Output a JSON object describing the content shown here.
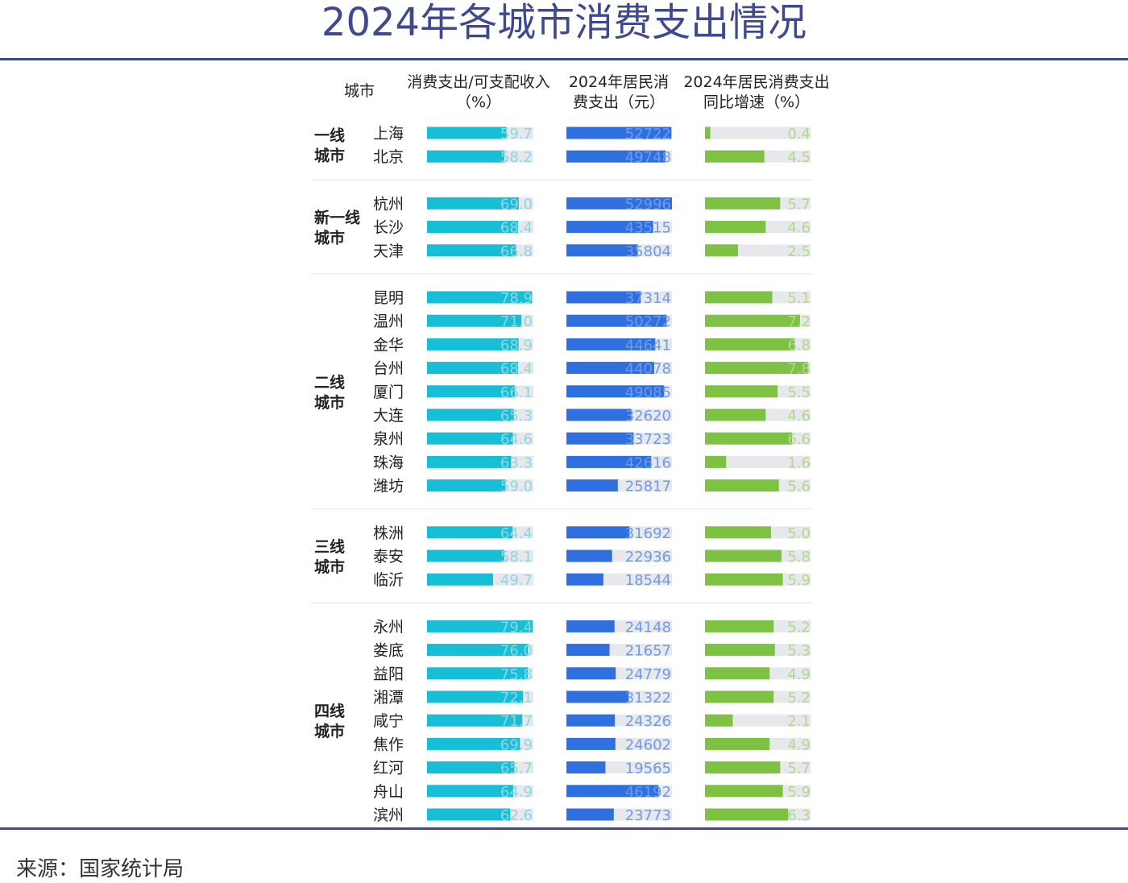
{
  "title": "2024年各城市消费支出情况",
  "source": "来源：国家统计局",
  "colors": {
    "ratio": "#16BFD6",
    "spending": "#2F6FE0",
    "growth": "#7DC242",
    "track": "#E6E8EB",
    "value_ratio": "#8FD5E3",
    "value_spending": "#6F9BE6",
    "value_growth": "#B2D88E",
    "title": "#3F4A8E",
    "rule": "#3A4C8C"
  },
  "headers": {
    "city": "城市",
    "ratio": "消费支出/可支配收入（%）",
    "spending": "2024年居民消费支出（元）",
    "growth": "2024年居民消费支出同比增速（%）"
  },
  "chart_data": {
    "type": "bar",
    "series": [
      {
        "key": "ratio",
        "name": "消费支出/可支配收入（%）",
        "max": 80
      },
      {
        "key": "spending",
        "name": "2024年居民消费支出（元）",
        "max": 53000
      },
      {
        "key": "growth",
        "name": "2024年居民消费支出同比增速（%）",
        "max": 8
      }
    ],
    "groups": [
      {
        "tier": "一线城市",
        "cities": [
          {
            "city": "上海",
            "ratio": 59.7,
            "spending": 52722,
            "growth": 0.4
          },
          {
            "city": "北京",
            "ratio": 58.2,
            "spending": 49748,
            "growth": 4.5
          }
        ]
      },
      {
        "tier": "新一线城市",
        "cities": [
          {
            "city": "杭州",
            "ratio": 69.0,
            "spending": 52996,
            "growth": 5.7
          },
          {
            "city": "长沙",
            "ratio": 68.4,
            "spending": 43515,
            "growth": 4.6
          },
          {
            "city": "天津",
            "ratio": 66.8,
            "spending": 35804,
            "growth": 2.5
          }
        ]
      },
      {
        "tier": "二线城市",
        "cities": [
          {
            "city": "昆明",
            "ratio": 78.9,
            "spending": 37314,
            "growth": 5.1
          },
          {
            "city": "温州",
            "ratio": 71.0,
            "spending": 50272,
            "growth": 7.2
          },
          {
            "city": "金华",
            "ratio": 68.9,
            "spending": 44641,
            "growth": 6.8
          },
          {
            "city": "台州",
            "ratio": 68.4,
            "spending": 44078,
            "growth": 7.8
          },
          {
            "city": "厦门",
            "ratio": 66.1,
            "spending": 49085,
            "growth": 5.5
          },
          {
            "city": "大连",
            "ratio": 65.3,
            "spending": 32620,
            "growth": 4.6
          },
          {
            "city": "泉州",
            "ratio": 64.6,
            "spending": 33723,
            "growth": 6.6
          },
          {
            "city": "珠海",
            "ratio": 63.3,
            "spending": 42616,
            "growth": 1.6
          },
          {
            "city": "潍坊",
            "ratio": 59.0,
            "spending": 25817,
            "growth": 5.6
          }
        ]
      },
      {
        "tier": "三线城市",
        "cities": [
          {
            "city": "株洲",
            "ratio": 64.4,
            "spending": 31692,
            "growth": 5.0
          },
          {
            "city": "泰安",
            "ratio": 58.1,
            "spending": 22936,
            "growth": 5.8
          },
          {
            "city": "临沂",
            "ratio": 49.7,
            "spending": 18544,
            "growth": 5.9
          }
        ]
      },
      {
        "tier": "四线城市",
        "cities": [
          {
            "city": "永州",
            "ratio": 79.4,
            "spending": 24148,
            "growth": 5.2
          },
          {
            "city": "娄底",
            "ratio": 76.0,
            "spending": 21657,
            "growth": 5.3
          },
          {
            "city": "益阳",
            "ratio": 75.8,
            "spending": 24779,
            "growth": 4.9
          },
          {
            "city": "湘潭",
            "ratio": 72.1,
            "spending": 31322,
            "growth": 5.2
          },
          {
            "city": "咸宁",
            "ratio": 71.7,
            "spending": 24326,
            "growth": 2.1
          },
          {
            "city": "焦作",
            "ratio": 69.9,
            "spending": 24602,
            "growth": 4.9
          },
          {
            "city": "红河",
            "ratio": 65.7,
            "spending": 19565,
            "growth": 5.7
          },
          {
            "city": "舟山",
            "ratio": 64.9,
            "spending": 46192,
            "growth": 5.9
          },
          {
            "city": "滨州",
            "ratio": 62.6,
            "spending": 23773,
            "growth": 6.3
          }
        ]
      }
    ]
  }
}
